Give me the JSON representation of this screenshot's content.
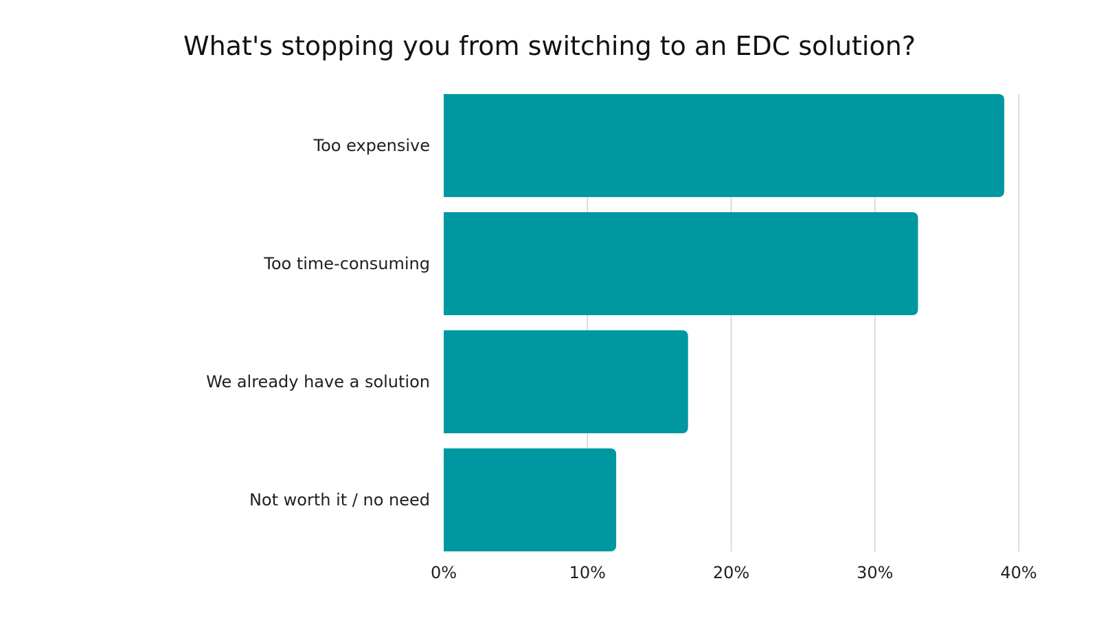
{
  "chart_data": {
    "type": "bar",
    "orientation": "horizontal",
    "title": "What's stopping you from switching to an EDC solution?",
    "categories": [
      "Too expensive",
      "Too time-consuming",
      "We already have a solution",
      "Not worth it / no need"
    ],
    "values": [
      39,
      33,
      17,
      12
    ],
    "value_unit": "%",
    "xlim": [
      0,
      40
    ],
    "x_ticks": [
      0,
      10,
      20,
      30,
      40
    ],
    "x_tick_labels": [
      "0%",
      "10%",
      "20%",
      "30%",
      "40%"
    ],
    "xlabel": "",
    "ylabel": "",
    "grid": "vertical",
    "legend": "none",
    "bar_color": "#0098A0",
    "grid_color": "#d0d0d0"
  }
}
